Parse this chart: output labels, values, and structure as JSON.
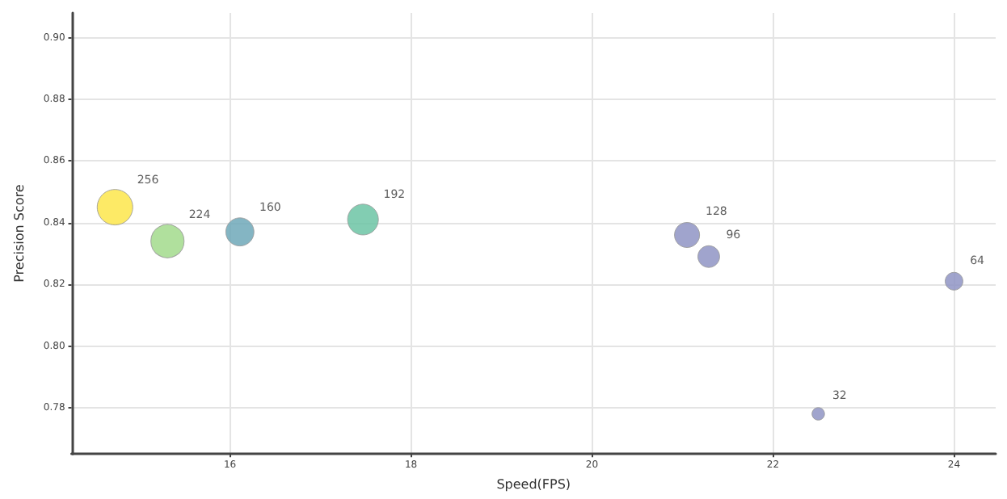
{
  "chart_data": {
    "type": "bubble",
    "xlabel": "Speed(FPS)",
    "ylabel": "Precision Score",
    "x": [
      14.73,
      15.31,
      16.11,
      17.47,
      21.05,
      21.29,
      24.0,
      22.5
    ],
    "values": [
      0.845,
      0.834,
      0.837,
      0.841,
      0.836,
      0.829,
      0.821,
      0.778
    ],
    "sizes": [
      1,
      0.875,
      0.625,
      0.75,
      0.5,
      0.375,
      0.25,
      0.125
    ],
    "colors": [
      "#fde64b",
      "#a2db8c",
      "#6fa8b8",
      "#6cc4a4",
      "#8f94c4",
      "#8f94c4",
      "#8f94c4",
      "#8f94c4"
    ],
    "annotations": [
      {
        "text": "256",
        "x": 14.73,
        "y": 0.845
      },
      {
        "text": "224",
        "x": 15.31,
        "y": 0.834
      },
      {
        "text": "160",
        "x": 16.11,
        "y": 0.837
      },
      {
        "text": "192",
        "x": 17.47,
        "y": 0.841
      },
      {
        "text": "128",
        "x": 21.05,
        "y": 0.836
      },
      {
        "text": "96",
        "x": 21.29,
        "y": 0.829
      },
      {
        "text": "64",
        "x": 24.0,
        "y": 0.821
      },
      {
        "text": "32",
        "x": 22.5,
        "y": 0.778
      }
    ],
    "xlim": [
      14.25,
      24.46
    ],
    "xticks": [
      16,
      18,
      20,
      22,
      24
    ],
    "ylim": [
      0.765,
      0.908
    ],
    "yticks": [
      {
        "value": 0.78,
        "label": "0.78"
      },
      {
        "value": 0.8,
        "label": "0.80"
      },
      {
        "value": 0.82,
        "label": "0.82"
      },
      {
        "value": 0.84,
        "label": "0.84"
      },
      {
        "value": 0.86,
        "label": "0.86"
      },
      {
        "value": 0.88,
        "label": "0.88"
      },
      {
        "value": 0.9,
        "label": "0.90"
      }
    ],
    "grid": true
  }
}
